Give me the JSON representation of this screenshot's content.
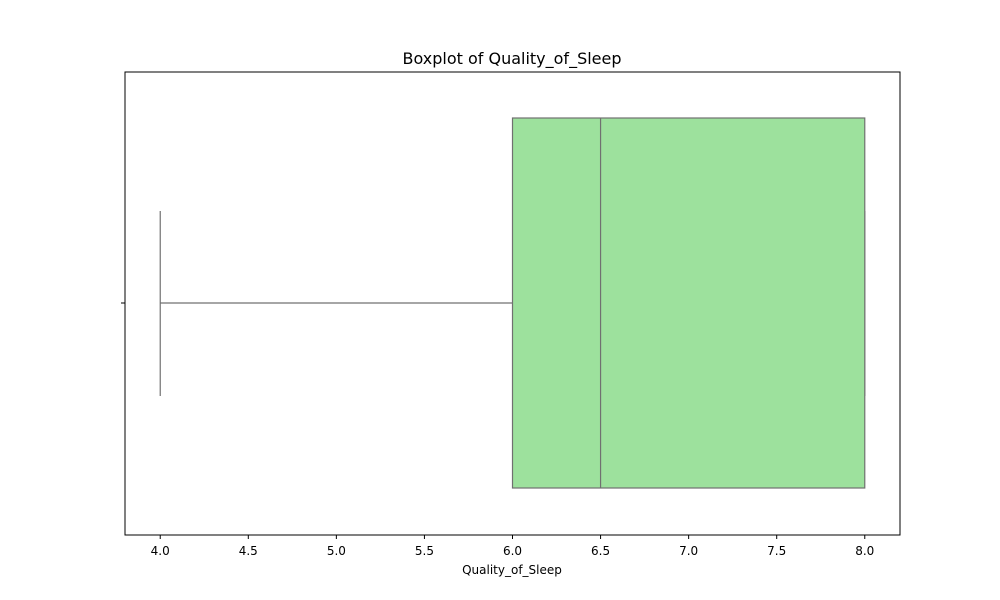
{
  "chart_data": {
    "type": "box",
    "title": "Boxplot of Quality_of_Sleep",
    "xlabel": "Quality_of_Sleep",
    "ylabel": "",
    "xlim": [
      3.8,
      8.2
    ],
    "x_ticks": [
      "4.0",
      "4.5",
      "5.0",
      "5.5",
      "6.0",
      "6.5",
      "7.0",
      "7.5",
      "8.0"
    ],
    "x_tick_values": [
      4.0,
      4.5,
      5.0,
      5.5,
      6.0,
      6.5,
      7.0,
      7.5,
      8.0
    ],
    "box": {
      "whisker_low": 4.0,
      "q1": 6.0,
      "median": 6.5,
      "q3": 8.0,
      "whisker_high": 8.0
    },
    "orientation": "horizontal",
    "grid": false,
    "colors": {
      "box_fill": "#9de19d",
      "box_edge": "#707070",
      "axes": "#000000"
    }
  }
}
